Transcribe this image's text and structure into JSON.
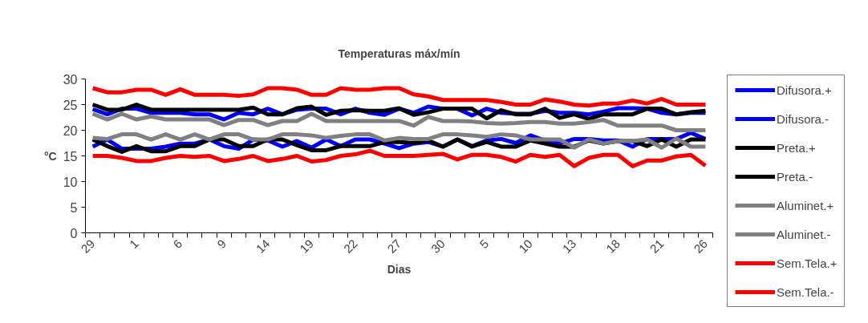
{
  "chart_data": {
    "type": "line",
    "title": "Temperaturas máx/mín",
    "xlabel": "Dias",
    "ylabel": "°C",
    "categories": [
      "29",
      null,
      null,
      "1",
      null,
      null,
      "6",
      null,
      null,
      "9",
      null,
      null,
      "14",
      null,
      null,
      "19",
      null,
      null,
      "22",
      null,
      null,
      "27",
      null,
      null,
      "30",
      null,
      null,
      "5",
      null,
      null,
      "10",
      null,
      null,
      "13",
      null,
      null,
      "18",
      null,
      null,
      "21",
      null,
      null,
      "26"
    ],
    "ylim": [
      0,
      30
    ],
    "yticks": [
      0,
      5,
      10,
      15,
      20,
      25,
      30
    ],
    "grid": false,
    "legend": "right",
    "marker": "none",
    "line_style": "solid",
    "series": [
      {
        "name": "Difusora.+",
        "color": "#0000ff",
        "values": [
          24.1,
          23.1,
          24.2,
          24.2,
          23.4,
          23.4,
          23.4,
          23.1,
          23.1,
          22.1,
          23.4,
          23.1,
          24.2,
          23.1,
          24,
          24.2,
          24.2,
          23.1,
          24.2,
          23.4,
          23,
          24.2,
          23.4,
          24.6,
          24.2,
          24.2,
          22.9,
          24.2,
          23.4,
          23.2,
          23.2,
          23.8,
          23.4,
          23.4,
          23.1,
          23.6,
          24.3,
          24.3,
          24.2,
          23.4,
          23.1,
          23.4,
          23.4
        ]
      },
      {
        "name": "Difusora.-",
        "color": "#0000ff",
        "values": [
          16.8,
          18.2,
          16.4,
          16.4,
          16.4,
          16.8,
          17.4,
          17.4,
          18.2,
          16.9,
          16.4,
          18.2,
          18,
          16.8,
          17.9,
          16.6,
          18.2,
          16.9,
          18.2,
          18.2,
          17.4,
          16.5,
          17.4,
          17.7,
          16.8,
          18.2,
          16.9,
          18,
          18.3,
          17.5,
          19,
          18,
          17.4,
          18.3,
          18.3,
          18,
          18,
          16.8,
          18.3,
          18.3,
          18.3,
          19.5,
          18.3
        ]
      },
      {
        "name": "Preta.+",
        "color": "#000000",
        "values": [
          25,
          24,
          24,
          25,
          24,
          24,
          24,
          24,
          24,
          24,
          24,
          24.4,
          23.1,
          23.1,
          24.3,
          24.6,
          23,
          23.8,
          23.9,
          23.8,
          23.8,
          24.3,
          23,
          23.5,
          24.2,
          24.2,
          24.2,
          22.3,
          23.9,
          23.1,
          23.1,
          24.2,
          22.4,
          23.1,
          22.2,
          23.1,
          23.1,
          23.1,
          24.2,
          24.2,
          23.1,
          23.5,
          23.8
        ]
      },
      {
        "name": "Preta.-",
        "color": "#000000",
        "values": [
          18.2,
          16.9,
          15.8,
          16.9,
          15.9,
          15.9,
          16.9,
          16.9,
          18.2,
          18.2,
          16.9,
          16.9,
          18.2,
          18.2,
          17.1,
          16.1,
          16.1,
          16.9,
          16.9,
          16.9,
          17.7,
          17.7,
          17.5,
          18,
          16.8,
          18.2,
          16.8,
          17.7,
          16.8,
          16.8,
          18,
          17.4,
          16.8,
          16.8,
          18,
          17.4,
          17.9,
          17.9,
          16.9,
          18.2,
          16.8,
          18.2,
          18.2
        ]
      },
      {
        "name": "Aluminet.+",
        "color": "#808080",
        "values": [
          23.2,
          22.1,
          23.2,
          22.1,
          22.7,
          22.1,
          22.1,
          22.1,
          22.1,
          21,
          22,
          22,
          21,
          21.8,
          21.8,
          23.2,
          21.8,
          21.8,
          21.8,
          21.8,
          21.8,
          21.8,
          20.9,
          22.6,
          21.8,
          21.8,
          21.7,
          21.4,
          21.3,
          21.4,
          21.6,
          21.6,
          21.3,
          21.3,
          21.6,
          22,
          20.9,
          20.9,
          20.9,
          20.9,
          20,
          20,
          20
        ]
      },
      {
        "name": "Aluminet.-",
        "color": "#808080",
        "values": [
          18.5,
          18.3,
          19.2,
          19.2,
          18.2,
          19.2,
          18.2,
          19.2,
          18.2,
          19.2,
          19.2,
          18.2,
          18.2,
          19.2,
          19.2,
          19,
          18.5,
          18.9,
          19.2,
          19.2,
          18,
          18.5,
          18.3,
          18.3,
          19.2,
          19.2,
          19,
          18.7,
          19.2,
          19,
          18.2,
          18.2,
          18.2,
          16.6,
          18.2,
          17.4,
          17.9,
          17.9,
          18.2,
          16.6,
          18.4,
          16.8,
          16.8
        ]
      },
      {
        "name": "Sem.Tela.+",
        "color": "#ff0000",
        "values": [
          28.2,
          27.4,
          27.4,
          27.9,
          27.9,
          26.9,
          28,
          26.9,
          26.9,
          26.9,
          26.7,
          27,
          28.2,
          28.2,
          27.9,
          26.9,
          26.9,
          28.2,
          27.9,
          27.9,
          28.2,
          28.2,
          27,
          26.6,
          25.9,
          25.9,
          25.9,
          25.9,
          25.5,
          25,
          25,
          26,
          25.6,
          25,
          24.8,
          25.2,
          25.2,
          25.8,
          25.2,
          26.1,
          25,
          25,
          25
        ]
      },
      {
        "name": "Sem.Tela.-",
        "color": "#ff0000",
        "values": [
          15,
          15,
          14.6,
          14,
          14,
          14.6,
          15,
          14.8,
          15,
          14,
          14.4,
          15,
          14,
          14.4,
          15,
          13.9,
          14.2,
          15,
          15.3,
          16,
          15,
          15,
          15,
          15.2,
          15.4,
          14.3,
          15.2,
          15.2,
          14.8,
          13.9,
          15.2,
          14.8,
          15.2,
          13,
          14.6,
          15.2,
          15.2,
          13,
          14.1,
          14.1,
          14.9,
          15.2,
          13.1
        ]
      }
    ]
  }
}
